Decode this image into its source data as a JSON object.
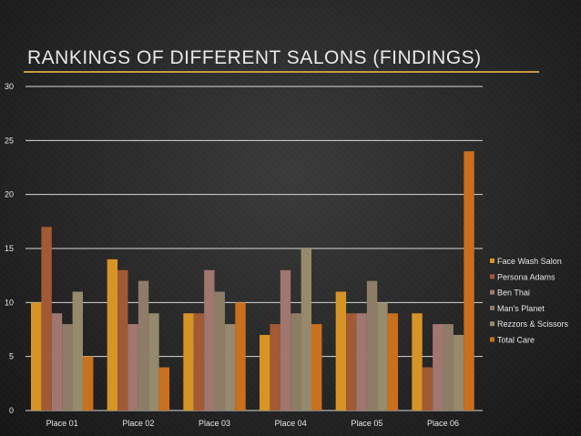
{
  "chart_data": {
    "type": "bar",
    "title": "RANKINGS OF DIFFERENT SALONS (FINDINGS)",
    "xlabel": "",
    "ylabel": "",
    "ylim": [
      0,
      30
    ],
    "yticks": [
      0,
      5,
      10,
      15,
      20,
      25,
      30
    ],
    "grid": true,
    "legend_position": "right",
    "categories": [
      "Place 01",
      "Place 02",
      "Place 03",
      "Place 04",
      "Place 05",
      "Place 06"
    ],
    "series": [
      {
        "name": "Face Wash Salon",
        "color": "#d69426",
        "values": [
          10,
          14,
          9,
          7,
          11,
          9
        ]
      },
      {
        "name": "Persona Adams",
        "color": "#a15a34",
        "values": [
          17,
          13,
          9,
          8,
          9,
          4
        ]
      },
      {
        "name": "Ben Thai",
        "color": "#a07670",
        "values": [
          9,
          8,
          13,
          13,
          9,
          8
        ]
      },
      {
        "name": "Man's Planet",
        "color": "#8e7c66",
        "values": [
          8,
          12,
          11,
          9,
          12,
          8
        ]
      },
      {
        "name": "Rezzors & Scissors",
        "color": "#96896c",
        "values": [
          11,
          9,
          8,
          15,
          10,
          7
        ]
      },
      {
        "name": "Total Care",
        "color": "#c8701e",
        "values": [
          5,
          4,
          10,
          8,
          9,
          24
        ]
      }
    ]
  }
}
